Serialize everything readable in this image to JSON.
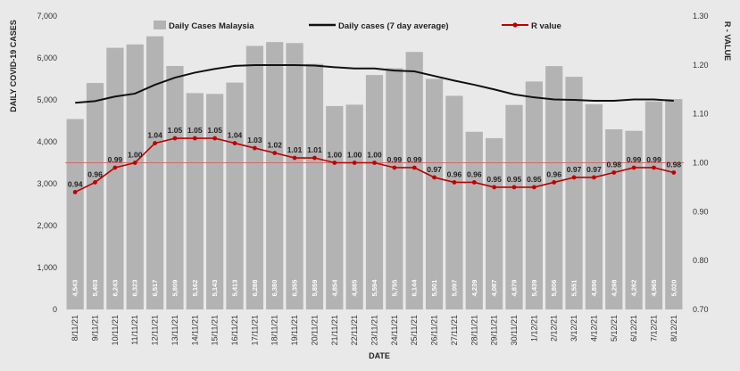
{
  "chart_data": {
    "type": "bar",
    "categories": [
      "8/11/21",
      "9/11/21",
      "10/11/21",
      "11/11/21",
      "12/11/21",
      "13/11/21",
      "14/11/21",
      "15/11/21",
      "16/11/21",
      "17/11/21",
      "18/11/21",
      "19/11/21",
      "20/11/21",
      "21/11/21",
      "22/11/21",
      "23/11/21",
      "24/11/21",
      "25/11/21",
      "26/11/21",
      "27/11/21",
      "28/11/21",
      "29/11/21",
      "30/11/21",
      "1/12/21",
      "2/12/21",
      "3/12/21",
      "4/12/21",
      "5/12/21",
      "6/12/21",
      "7/12/21",
      "8/12/21"
    ],
    "series": [
      {
        "name": "Daily Cases Malaysia",
        "type": "bar",
        "axis": "left",
        "color": "#b3b3b3",
        "values": [
          4543,
          5403,
          6243,
          6323,
          6517,
          5809,
          5162,
          5143,
          5413,
          6288,
          6380,
          6355,
          5859,
          4854,
          4885,
          5594,
          5755,
          6144,
          5501,
          5097,
          4239,
          4087,
          4879,
          5439,
          5806,
          5551,
          4896,
          4298,
          4262,
          4965,
          5020
        ]
      },
      {
        "name": "Daily cases (7 day average)",
        "type": "line",
        "axis": "left",
        "color": "#111111",
        "values": [
          4930,
          4970,
          5080,
          5150,
          5360,
          5530,
          5650,
          5740,
          5810,
          5830,
          5830,
          5830,
          5820,
          5780,
          5750,
          5750,
          5700,
          5680,
          5570,
          5460,
          5360,
          5250,
          5130,
          5060,
          5010,
          5000,
          4980,
          4980,
          5010,
          5010,
          4980
        ]
      },
      {
        "name": "R value",
        "type": "line",
        "axis": "right",
        "color": "#c00000",
        "values": [
          0.94,
          0.96,
          0.99,
          1.0,
          1.04,
          1.05,
          1.05,
          1.05,
          1.04,
          1.03,
          1.02,
          1.01,
          1.01,
          1.0,
          1.0,
          1.0,
          0.99,
          0.99,
          0.97,
          0.96,
          0.96,
          0.95,
          0.95,
          0.95,
          0.96,
          0.97,
          0.97,
          0.98,
          0.99,
          0.99,
          0.98
        ],
        "labels": [
          "0.94",
          "0.96",
          "0.99",
          "1.00",
          "1.04",
          "1.05",
          "1.05",
          "1.05",
          "1.04",
          "1.03",
          "1.02",
          "1.01",
          "1.01",
          "1.00",
          "1.00",
          "1.00",
          "0.99",
          "0.99",
          "0.97",
          "0.96",
          "0.96",
          "0.95",
          "0.95",
          "0.95",
          "0.96",
          "0.97",
          "0.97",
          "0.98",
          "0.99",
          "0.99",
          "0.98"
        ]
      }
    ],
    "bar_value_labels": [
      "4,543",
      "5,403",
      "6,243",
      "6,323",
      "6,517",
      "5,809",
      "5,162",
      "5,143",
      "5,413",
      "6,288",
      "6,380",
      "6,355",
      "5,859",
      "4,854",
      "4,885",
      "5,594",
      "5,755",
      "6,144",
      "5,501",
      "5,097",
      "4,239",
      "4,087",
      "4,879",
      "5,439",
      "5,806",
      "5,551",
      "4,896",
      "4,298",
      "4,262",
      "4,965",
      "5,020"
    ],
    "xlabel": "DATE",
    "ylabel": "DAILY COVID-19 CASES",
    "y2label": "R - VALUE",
    "ylim": [
      0,
      7000
    ],
    "y2lim": [
      0.7,
      1.3
    ],
    "yticks": [
      0,
      1000,
      2000,
      3000,
      4000,
      5000,
      6000,
      7000
    ],
    "ytick_labels": [
      "0",
      "1,000",
      "2,000",
      "3,000",
      "4,000",
      "5,000",
      "6,000",
      "7,000"
    ],
    "y2ticks": [
      0.7,
      0.8,
      0.9,
      1.0,
      1.1,
      1.2,
      1.3
    ],
    "y2tick_labels": [
      "0.70",
      "0.80",
      "0.90",
      "1.00",
      "1.10",
      "1.20",
      "1.30"
    ],
    "reference_line": {
      "axis": "right",
      "value": 1.0,
      "color": "#d46a6a"
    },
    "grid": false,
    "legend": {
      "position": "top",
      "entries": [
        "Daily Cases Malaysia",
        "Daily cases (7 day average)",
        "R value"
      ]
    }
  }
}
